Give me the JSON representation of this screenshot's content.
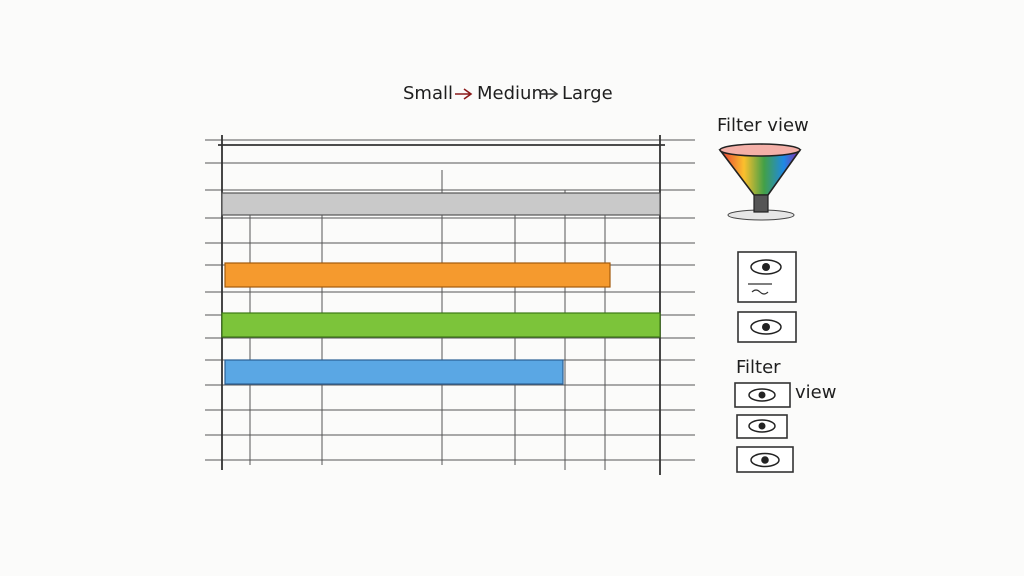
{
  "header": {
    "steps": [
      "Small",
      "Medium",
      "Large"
    ]
  },
  "filter_panel": {
    "title": "Filter view"
  },
  "filter_group": {
    "title": "Filter",
    "label": "view"
  }
}
